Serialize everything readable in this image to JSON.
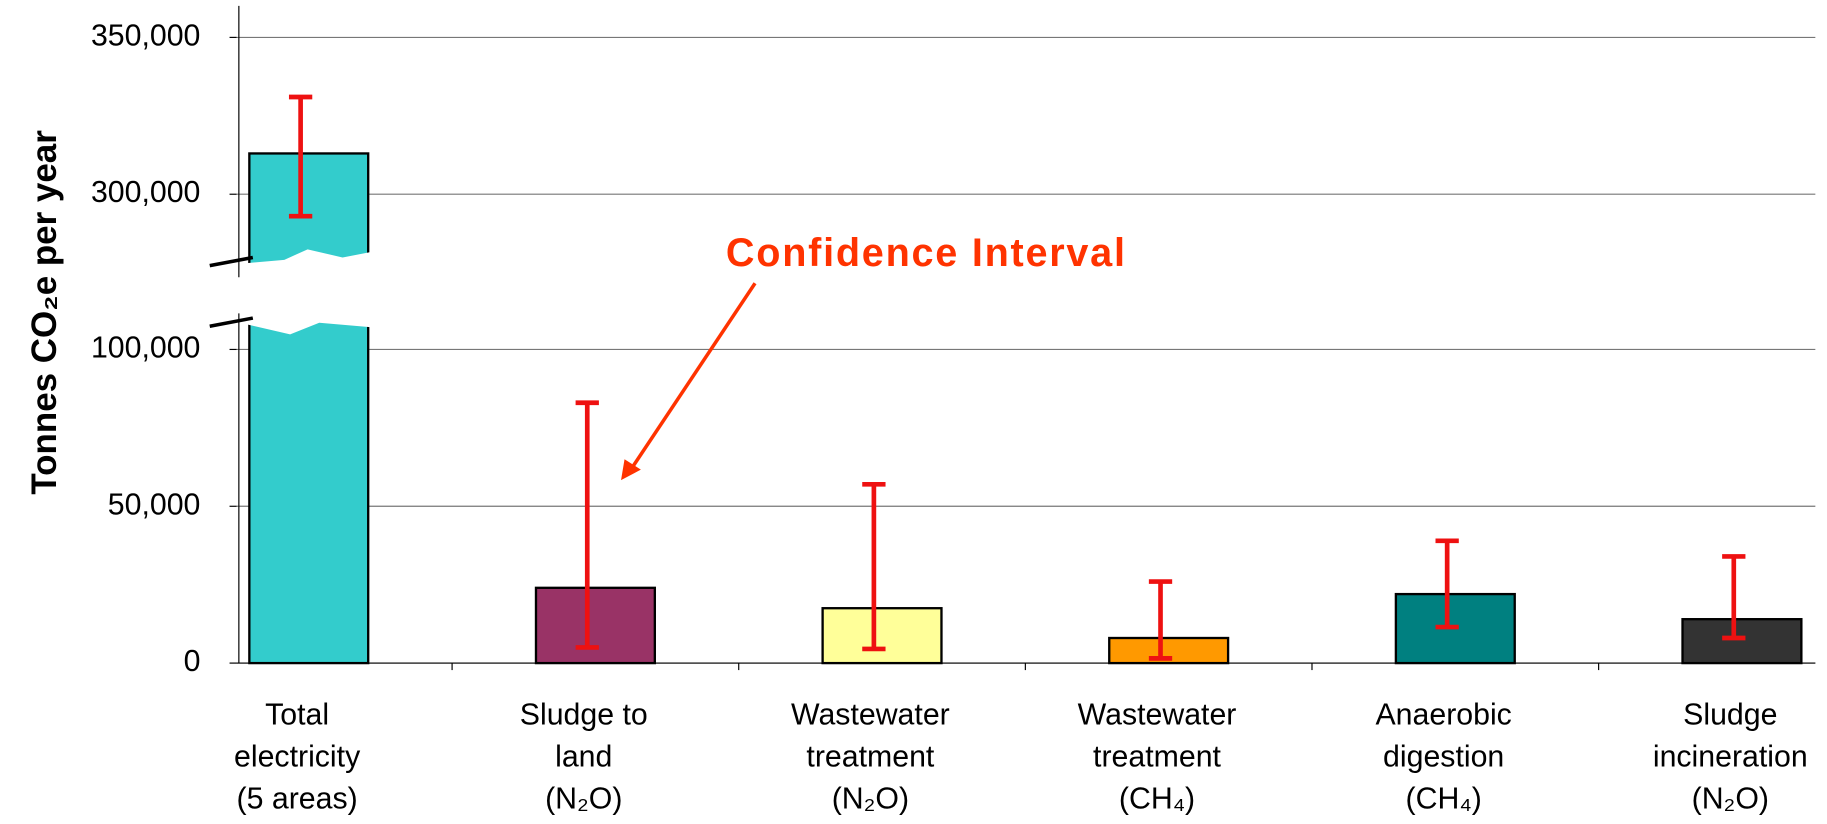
{
  "chart_data": {
    "type": "bar",
    "y_label": "Tonnes CO₂e per year",
    "annotation": "Confidence Interval",
    "categories": [
      [
        "Total",
        "electricity",
        "(5 areas)"
      ],
      [
        "Sludge to",
        "land",
        "(N₂O)"
      ],
      [
        "Wastewater",
        "treatment",
        "(N₂O)"
      ],
      [
        "Wastewater",
        "treatment",
        "(CH₄)"
      ],
      [
        "Anaerobic",
        "digestion",
        "(CH₄)"
      ],
      [
        "Sludge",
        "incineration",
        "(N₂O)"
      ]
    ],
    "values": [
      313000,
      24000,
      17500,
      8000,
      22000,
      14000
    ],
    "ci_lower": [
      293000,
      5000,
      4500,
      1500,
      11500,
      8000
    ],
    "ci_upper": [
      331000,
      83000,
      57000,
      26000,
      39000,
      34000
    ],
    "colors": [
      "#33cccc",
      "#993366",
      "#ffff99",
      "#ff9900",
      "#008080",
      "#333333"
    ],
    "error_color": "#ee1111",
    "ylim": [
      0,
      350000
    ],
    "ybreak": [
      110000,
      275000
    ],
    "yticks": [
      {
        "value": 0,
        "label": "0"
      },
      {
        "value": 50000,
        "label": "50,000"
      },
      {
        "value": 100000,
        "label": "100,000"
      },
      {
        "value": 300000,
        "label": "300,000"
      },
      {
        "value": 350000,
        "label": "350,000"
      }
    ],
    "grid": true
  }
}
